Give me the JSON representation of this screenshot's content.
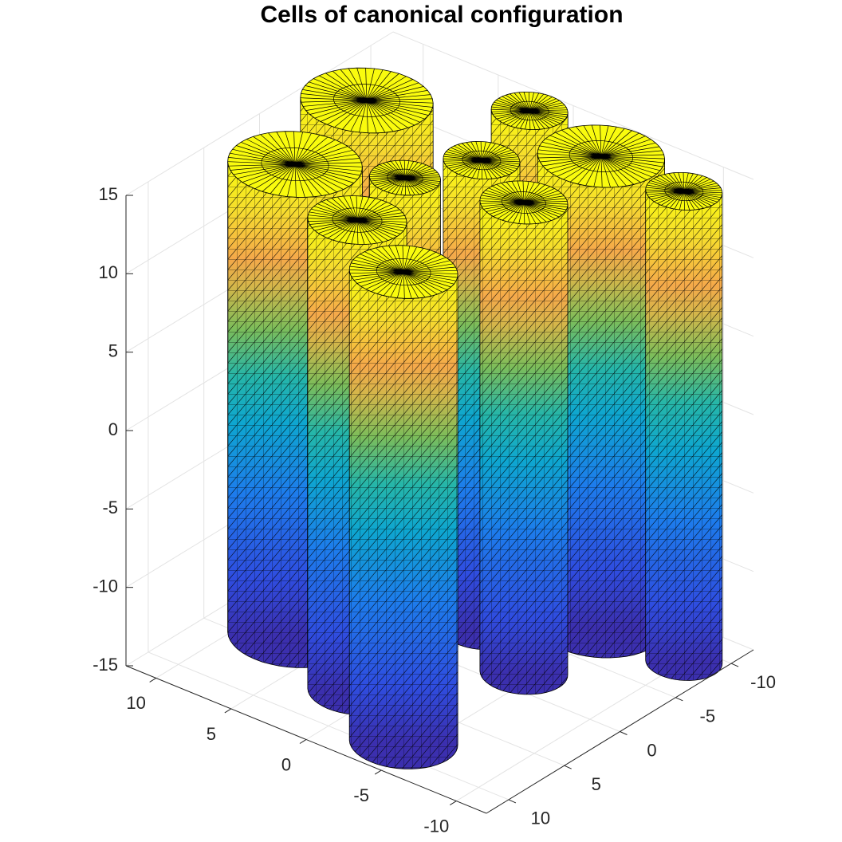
{
  "chart_data": {
    "type": "cylinders3d",
    "title": "Cells of canonical configuration",
    "cells": [
      {
        "x": -5.02,
        "y": 8.58,
        "r": 3.55
      },
      {
        "x": 3.18,
        "y": 7.28,
        "r": 3.6
      },
      {
        "x": -9.97,
        "y": 1.41,
        "r": 2.05
      },
      {
        "x": 0.41,
        "y": 2.01,
        "r": 1.9
      },
      {
        "x": -3.89,
        "y": 0.1,
        "r": 2.05
      },
      {
        "x": -8.55,
        "y": -4.41,
        "r": 3.4
      },
      {
        "x": 5.85,
        "y": 1.16,
        "r": 2.65
      },
      {
        "x": -1.7,
        "y": -4.34,
        "r": 2.35
      },
      {
        "x": -8.45,
        "y": -10.0,
        "r": 2.05
      },
      {
        "x": 8.74,
        "y": -4.07,
        "r": 2.9
      }
    ],
    "xlim": [
      -12,
      12
    ],
    "ylim": [
      -12,
      12
    ],
    "zlim": [
      -15,
      15
    ],
    "xticks": [
      -10,
      -5,
      0,
      5,
      10
    ],
    "yticks": [
      -10,
      -5,
      0,
      5,
      10
    ],
    "zticks": [
      -15,
      -10,
      -5,
      0,
      5,
      10,
      15
    ],
    "grid": true,
    "colormap": "parula"
  }
}
